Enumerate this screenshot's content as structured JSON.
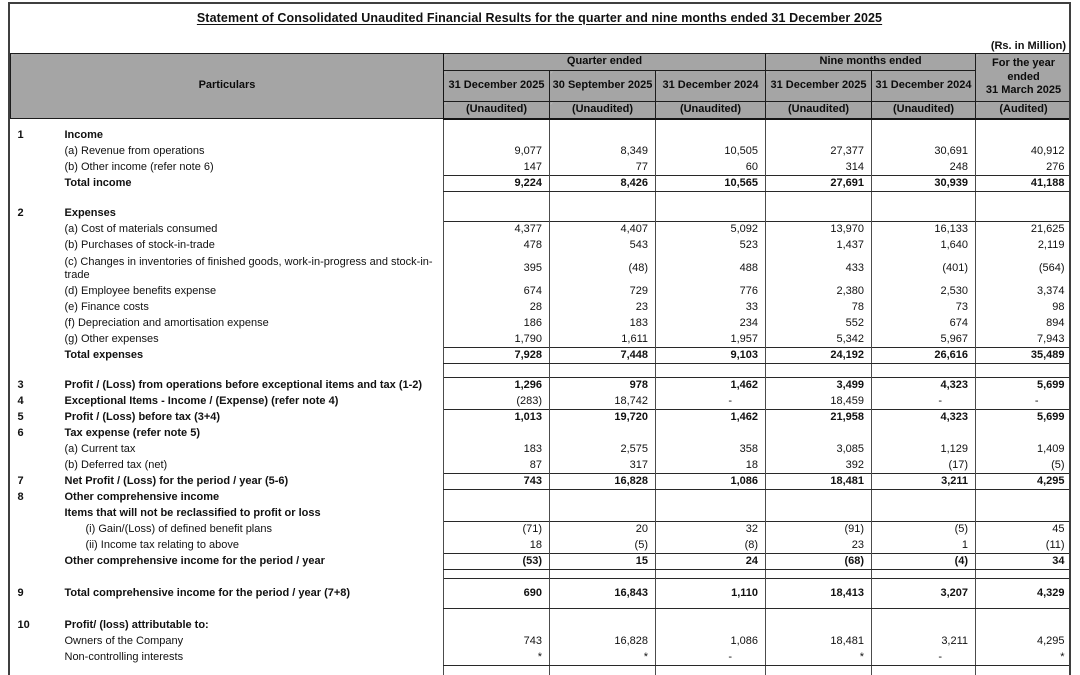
{
  "title": "Statement of Consolidated Unaudited Financial Results for the quarter and nine months ended 31 December 2025",
  "units_note": "(Rs. in Million)",
  "header": {
    "particulars": "Particulars",
    "groups": [
      {
        "label": "Quarter ended",
        "span": 3
      },
      {
        "label": "Nine months ended",
        "span": 2
      }
    ],
    "periods": [
      "31 December 2025",
      "30 September 2025",
      "31 December 2024",
      "31 December 2025",
      "31 December 2024"
    ],
    "audits": [
      "(Unaudited)",
      "(Unaudited)",
      "(Unaudited)",
      "(Unaudited)",
      "(Unaudited)"
    ],
    "year_column": {
      "line1": "For the year",
      "line2": "ended",
      "line3": "31 March 2025",
      "audit": "(Audited)"
    }
  },
  "rows": [
    {
      "spacer": true,
      "small": true
    },
    {
      "num": "1",
      "label": "Income",
      "bold": true
    },
    {
      "label": "(a) Revenue from operations",
      "values": [
        "9,077",
        "8,349",
        "10,505",
        "27,377",
        "30,691",
        "40,912"
      ]
    },
    {
      "label": "(b) Other income (refer note 6)",
      "values": [
        "147",
        "77",
        "60",
        "314",
        "248",
        "276"
      ]
    },
    {
      "label": "Total income",
      "bold": true,
      "boldValues": true,
      "lineTop": true,
      "lineBottom": true,
      "values": [
        "9,224",
        "8,426",
        "10,565",
        "27,691",
        "30,939",
        "41,188"
      ]
    },
    {
      "spacer": true
    },
    {
      "num": "2",
      "label": "Expenses",
      "bold": true
    },
    {
      "label": "(a) Cost of materials consumed",
      "lineTop": true,
      "values": [
        "4,377",
        "4,407",
        "5,092",
        "13,970",
        "16,133",
        "21,625"
      ]
    },
    {
      "label": "(b) Purchases of stock-in-trade",
      "values": [
        "478",
        "543",
        "523",
        "1,437",
        "1,640",
        "2,119"
      ]
    },
    {
      "label": "(c) Changes in inventories of finished goods, work-in-progress and stock-in-trade",
      "tall": true,
      "values": [
        "395",
        "(48)",
        "488",
        "433",
        "(401)",
        "(564)"
      ]
    },
    {
      "label": "(d) Employee benefits expense",
      "values": [
        "674",
        "729",
        "776",
        "2,380",
        "2,530",
        "3,374"
      ]
    },
    {
      "label": "(e) Finance costs",
      "values": [
        "28",
        "23",
        "33",
        "78",
        "73",
        "98"
      ]
    },
    {
      "label": "(f) Depreciation and amortisation expense",
      "values": [
        "186",
        "183",
        "234",
        "552",
        "674",
        "894"
      ]
    },
    {
      "label": "(g) Other expenses",
      "values": [
        "1,790",
        "1,611",
        "1,957",
        "5,342",
        "5,967",
        "7,943"
      ]
    },
    {
      "label": "Total expenses",
      "bold": true,
      "boldValues": true,
      "lineTop": true,
      "lineBottom": true,
      "values": [
        "7,928",
        "7,448",
        "9,103",
        "24,192",
        "26,616",
        "35,489"
      ]
    },
    {
      "spacer": true
    },
    {
      "num": "3",
      "label": "Profit / (Loss) from operations before exceptional items and tax (1-2)",
      "bold": true,
      "boldValues": true,
      "lineTop": true,
      "values": [
        "1,296",
        "978",
        "1,462",
        "3,499",
        "4,323",
        "5,699"
      ]
    },
    {
      "num": "4",
      "label": "Exceptional Items - Income / (Expense) (refer note 4)",
      "bold": true,
      "values": [
        "(283)",
        "18,742",
        "-",
        "18,459",
        "-",
        "-"
      ]
    },
    {
      "num": "5",
      "label": "Profit / (Loss) before tax (3+4)",
      "bold": true,
      "boldValues": true,
      "lineTop": true,
      "values": [
        "1,013",
        "19,720",
        "1,462",
        "21,958",
        "4,323",
        "5,699"
      ]
    },
    {
      "num": "6",
      "label": "Tax expense (refer note 5)",
      "bold": true
    },
    {
      "label": "(a) Current tax",
      "values": [
        "183",
        "2,575",
        "358",
        "3,085",
        "1,129",
        "1,409"
      ]
    },
    {
      "label": "(b) Deferred tax (net)",
      "values": [
        "87",
        "317",
        "18",
        "392",
        "(17)",
        "(5)"
      ]
    },
    {
      "num": "7",
      "label": "Net Profit / (Loss) for the period / year (5-6)",
      "bold": true,
      "boldValues": true,
      "lineTop": true,
      "lineBottom": true,
      "values": [
        "743",
        "16,828",
        "1,086",
        "18,481",
        "3,211",
        "4,295"
      ]
    },
    {
      "num": "8",
      "label": "Other comprehensive income",
      "bold": true
    },
    {
      "label": "Items that will not be reclassified to profit or loss",
      "bold": true
    },
    {
      "label": "(i) Gain/(Loss) of defined benefit plans",
      "indent": 1,
      "lineTop": true,
      "values": [
        "(71)",
        "20",
        "32",
        "(91)",
        "(5)",
        "45"
      ]
    },
    {
      "label": "(ii) Income tax relating to above",
      "indent": 1,
      "values": [
        "18",
        "(5)",
        "(8)",
        "23",
        "1",
        "(11)"
      ]
    },
    {
      "label": "Other comprehensive income for the period / year",
      "bold": true,
      "boldValues": true,
      "lineTop": true,
      "lineBottom": true,
      "values": [
        "(53)",
        "15",
        "24",
        "(68)",
        "(4)",
        "34"
      ]
    },
    {
      "spacer": true,
      "small": true
    },
    {
      "num": "9",
      "label": "Total comprehensive income for the period / year (7+8)",
      "bold": true,
      "boldValues": true,
      "lineTop": true,
      "lineBottom": true,
      "tall": true,
      "values": [
        "690",
        "16,843",
        "1,110",
        "18,413",
        "3,207",
        "4,329"
      ]
    },
    {
      "spacer": true,
      "small": true
    },
    {
      "num": "10",
      "label": "Profit/ (loss) attributable to:",
      "bold": true
    },
    {
      "label": "Owners of the Company",
      "values": [
        "743",
        "16,828",
        "1,086",
        "18,481",
        "3,211",
        "4,295"
      ]
    },
    {
      "label": "Non-controlling interests",
      "lineBottom": true,
      "values": [
        "*",
        "*",
        "-",
        "*",
        "-",
        "*"
      ]
    },
    {
      "spacer": true,
      "small": true
    }
  ]
}
